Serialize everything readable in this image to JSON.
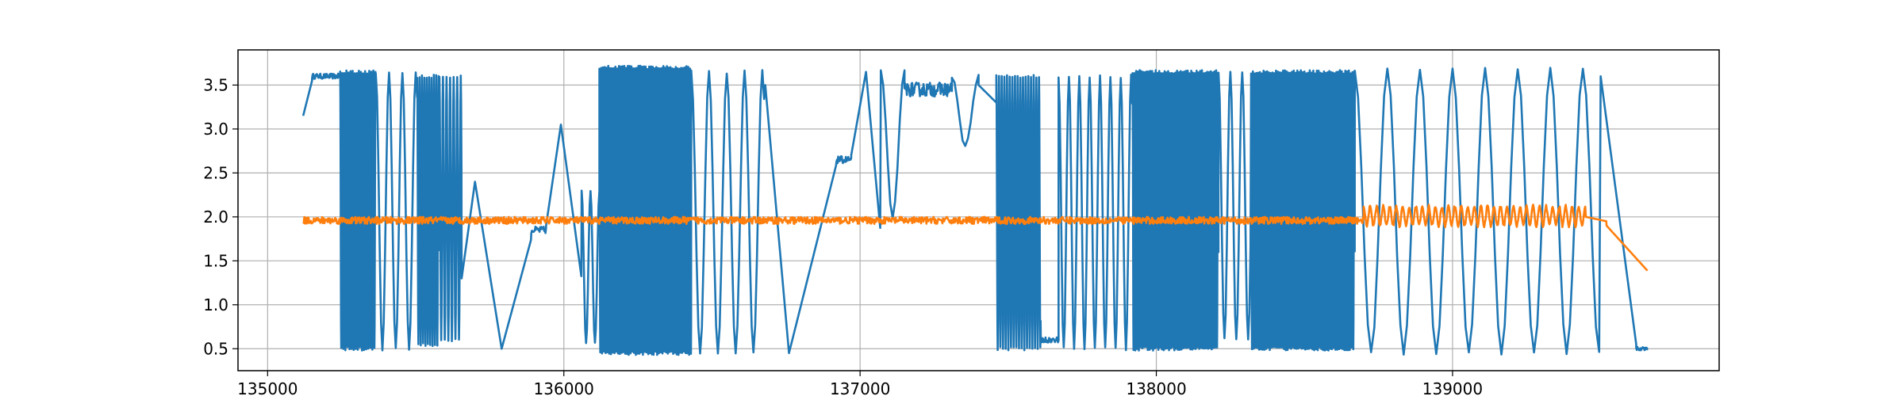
{
  "chart_data": {
    "type": "line",
    "title": "",
    "xlabel": "",
    "ylabel": "",
    "xlim": [
      134900,
      139900
    ],
    "ylim": [
      0.25,
      3.9
    ],
    "grid": true,
    "x_ticks": [
      135000,
      136000,
      137000,
      138000,
      139000
    ],
    "x_tick_labels": [
      "135000",
      "136000",
      "137000",
      "138000",
      "139000"
    ],
    "y_ticks": [
      0.5,
      1.0,
      1.5,
      2.0,
      2.5,
      3.0,
      3.5
    ],
    "y_tick_labels": [
      "0.5",
      "1.0",
      "1.5",
      "2.0",
      "2.5",
      "3.0",
      "3.5"
    ],
    "series": [
      {
        "color": "#1f77b4",
        "segments": [
          {
            "x0": 135120,
            "x1": 135150,
            "kind": "linear",
            "ya": 3.15,
            "yb": 3.55
          },
          {
            "x0": 135150,
            "x1": 135245,
            "kind": "flat",
            "y": 3.6,
            "noise": 0.03
          },
          {
            "x0": 135245,
            "x1": 135365,
            "kind": "osc",
            "lo": 0.5,
            "hi": 3.65,
            "period": 7
          },
          {
            "x0": 135365,
            "x1": 135505,
            "kind": "osc",
            "lo": 0.5,
            "hi": 3.65,
            "period": 45
          },
          {
            "x0": 135505,
            "x1": 135580,
            "kind": "osc",
            "lo": 0.55,
            "hi": 3.6,
            "period": 8
          },
          {
            "x0": 135580,
            "x1": 135655,
            "kind": "osc",
            "lo": 0.6,
            "hi": 3.6,
            "period": 12
          },
          {
            "x0": 135655,
            "x1": 135700,
            "kind": "linear",
            "ya": 1.3,
            "yb": 2.4
          },
          {
            "x0": 135700,
            "x1": 135790,
            "kind": "linear",
            "ya": 2.4,
            "yb": 0.5
          },
          {
            "x0": 135790,
            "x1": 135890,
            "kind": "linear",
            "ya": 0.5,
            "yb": 1.75
          },
          {
            "x0": 135890,
            "x1": 135940,
            "kind": "flat",
            "y": 1.85,
            "noise": 0.04
          },
          {
            "x0": 135940,
            "x1": 135990,
            "kind": "linear",
            "ya": 1.9,
            "yb": 3.05
          },
          {
            "x0": 135990,
            "x1": 136060,
            "kind": "linear",
            "ya": 3.05,
            "yb": 1.3
          },
          {
            "x0": 136060,
            "x1": 136120,
            "kind": "osc",
            "lo": 0.55,
            "hi": 2.3,
            "period": 30
          },
          {
            "x0": 136120,
            "x1": 136430,
            "kind": "osc",
            "lo": 0.45,
            "hi": 3.7,
            "period": 6
          },
          {
            "x0": 136430,
            "x1": 136680,
            "kind": "osc",
            "lo": 0.45,
            "hi": 3.65,
            "period": 60
          },
          {
            "x0": 136680,
            "x1": 136760,
            "kind": "linear",
            "ya": 3.5,
            "yb": 0.45
          },
          {
            "x0": 136760,
            "x1": 136920,
            "kind": "linear",
            "ya": 0.45,
            "yb": 2.6
          },
          {
            "x0": 136920,
            "x1": 136970,
            "kind": "flat",
            "y": 2.65,
            "noise": 0.04
          },
          {
            "x0": 136970,
            "x1": 137020,
            "kind": "linear",
            "ya": 2.7,
            "yb": 3.65
          },
          {
            "x0": 137020,
            "x1": 137070,
            "kind": "linear",
            "ya": 3.65,
            "yb": 1.8
          },
          {
            "x0": 137070,
            "x1": 137150,
            "kind": "osc",
            "lo": 2.0,
            "hi": 3.65,
            "period": 80
          },
          {
            "x0": 137150,
            "x1": 137310,
            "kind": "flat",
            "y": 3.45,
            "noise": 0.08
          },
          {
            "x0": 137310,
            "x1": 137400,
            "kind": "osc",
            "lo": 2.8,
            "hi": 3.6,
            "period": 90
          },
          {
            "x0": 137400,
            "x1": 137460,
            "kind": "linear",
            "ya": 3.5,
            "yb": 3.3
          },
          {
            "x0": 137460,
            "x1": 137610,
            "kind": "osc",
            "lo": 0.5,
            "hi": 3.6,
            "period": 9
          },
          {
            "x0": 137610,
            "x1": 137670,
            "kind": "flat",
            "y": 0.6,
            "noise": 0.03
          },
          {
            "x0": 137670,
            "x1": 137920,
            "kind": "osc",
            "lo": 0.5,
            "hi": 3.6,
            "period": 35
          },
          {
            "x0": 137920,
            "x1": 138210,
            "kind": "osc",
            "lo": 0.5,
            "hi": 3.65,
            "period": 6
          },
          {
            "x0": 138210,
            "x1": 138320,
            "kind": "osc",
            "lo": 0.6,
            "hi": 3.65,
            "period": 40
          },
          {
            "x0": 138320,
            "x1": 138670,
            "kind": "osc",
            "lo": 0.5,
            "hi": 3.65,
            "period": 6
          },
          {
            "x0": 138670,
            "x1": 139500,
            "kind": "osc",
            "lo": 0.45,
            "hi": 3.68,
            "period": 110
          },
          {
            "x0": 139500,
            "x1": 139620,
            "kind": "linear",
            "ya": 3.6,
            "yb": 0.55
          },
          {
            "x0": 139620,
            "x1": 139660,
            "kind": "flat",
            "y": 0.5,
            "noise": 0.02
          }
        ]
      },
      {
        "color": "#ff7f0e",
        "segments": [
          {
            "x0": 135120,
            "x1": 138700,
            "kind": "flat",
            "y": 1.96,
            "noise": 0.04
          },
          {
            "x0": 138700,
            "x1": 139450,
            "kind": "osc",
            "lo": 1.9,
            "hi": 2.12,
            "period": 22
          },
          {
            "x0": 139450,
            "x1": 139520,
            "kind": "linear",
            "ya": 2.0,
            "yb": 1.95
          },
          {
            "x0": 139520,
            "x1": 139660,
            "kind": "linear",
            "ya": 1.9,
            "yb": 1.38
          }
        ]
      }
    ]
  }
}
